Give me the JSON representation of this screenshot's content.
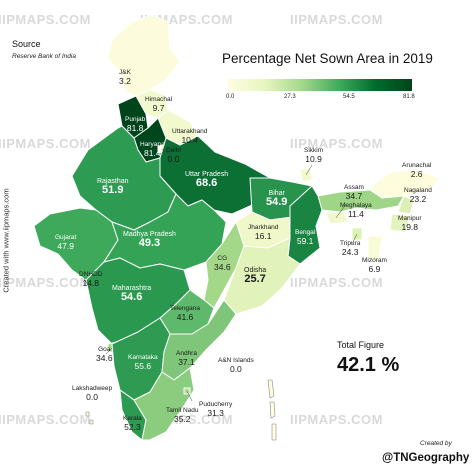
{
  "title": "Percentage Net Sown Area in 2019",
  "legend": {
    "ticks": [
      "0.0",
      "27.3",
      "54.5",
      "81.8"
    ],
    "min": 0.0,
    "max": 81.8
  },
  "source": {
    "heading": "Source",
    "text": "Reserve Bank of India"
  },
  "side_credit": "Created with www.iipmaps.com",
  "total": {
    "label": "Total Figure",
    "value": "42.1 %"
  },
  "created_by": "Created by",
  "handle": "@TNGeography",
  "watermark": "IIPMAPS.COM",
  "colors": {
    "scale_low": "#fefde0",
    "scale_high": "#00441b",
    "border": "#ffffff"
  },
  "regions": [
    {
      "id": "jk",
      "name": "J&K",
      "value": "3.2"
    },
    {
      "id": "himachal",
      "name": "Himachal",
      "value": "9.7"
    },
    {
      "id": "punjab",
      "name": "Punjab",
      "value": "81.8"
    },
    {
      "id": "uttarakhand",
      "name": "Uttarakhand",
      "value": "10.4"
    },
    {
      "id": "haryana",
      "name": "Haryana",
      "value": "81.4"
    },
    {
      "id": "delhi",
      "name": "Delhi",
      "value": "0.0"
    },
    {
      "id": "uttar_pradesh",
      "name": "Uttar Pradesh",
      "value": "68.6"
    },
    {
      "id": "rajasthan",
      "name": "Rajasthan",
      "value": "51.9"
    },
    {
      "id": "gujarat",
      "name": "Gujarat",
      "value": "47.9"
    },
    {
      "id": "madhya_pradesh",
      "name": "Madhya Pradesh",
      "value": "49.3"
    },
    {
      "id": "bihar",
      "name": "Bihar",
      "value": "54.9"
    },
    {
      "id": "sikkim",
      "name": "Sikkim",
      "value": "10.9"
    },
    {
      "id": "arunachal",
      "name": "Arunachal",
      "value": "2.6"
    },
    {
      "id": "assam",
      "name": "Assam",
      "value": "34.7"
    },
    {
      "id": "meghalaya",
      "name": "Meghalaya",
      "value": "11.4"
    },
    {
      "id": "nagaland",
      "name": "Nagaland",
      "value": "23.2"
    },
    {
      "id": "manipur",
      "name": "Manipur",
      "value": "19.8"
    },
    {
      "id": "tripura",
      "name": "Tripura",
      "value": "24.3"
    },
    {
      "id": "mizoram",
      "name": "Mizoram",
      "value": "6.9"
    },
    {
      "id": "jharkhand",
      "name": "Jharkhand",
      "value": "16.1"
    },
    {
      "id": "bengal",
      "name": "Bengal",
      "value": "59.1"
    },
    {
      "id": "dnhdd",
      "name": "DNHDD",
      "value": "14.8"
    },
    {
      "id": "maharashtra",
      "name": "Maharashtra",
      "value": "54.6"
    },
    {
      "id": "cg",
      "name": "CG",
      "value": "34.6"
    },
    {
      "id": "odisha",
      "name": "Odisha",
      "value": "25.7"
    },
    {
      "id": "telangana",
      "name": "Telengana",
      "value": "41.6"
    },
    {
      "id": "goa",
      "name": "Goa",
      "value": "34.6"
    },
    {
      "id": "karnataka",
      "name": "Karnataka",
      "value": "55.6"
    },
    {
      "id": "andhra",
      "name": "Andhra",
      "value": "37.1"
    },
    {
      "id": "an_islands",
      "name": "A&N Islands",
      "value": "0.0"
    },
    {
      "id": "lakshadweep",
      "name": "Lakshadweep",
      "value": "0.0"
    },
    {
      "id": "kerala",
      "name": "Kerala",
      "value": "52.3"
    },
    {
      "id": "tamil_nadu",
      "name": "Tamil Nadu",
      "value": "35.2"
    },
    {
      "id": "puducherry",
      "name": "Puducherry",
      "value": "31.3"
    }
  ]
}
